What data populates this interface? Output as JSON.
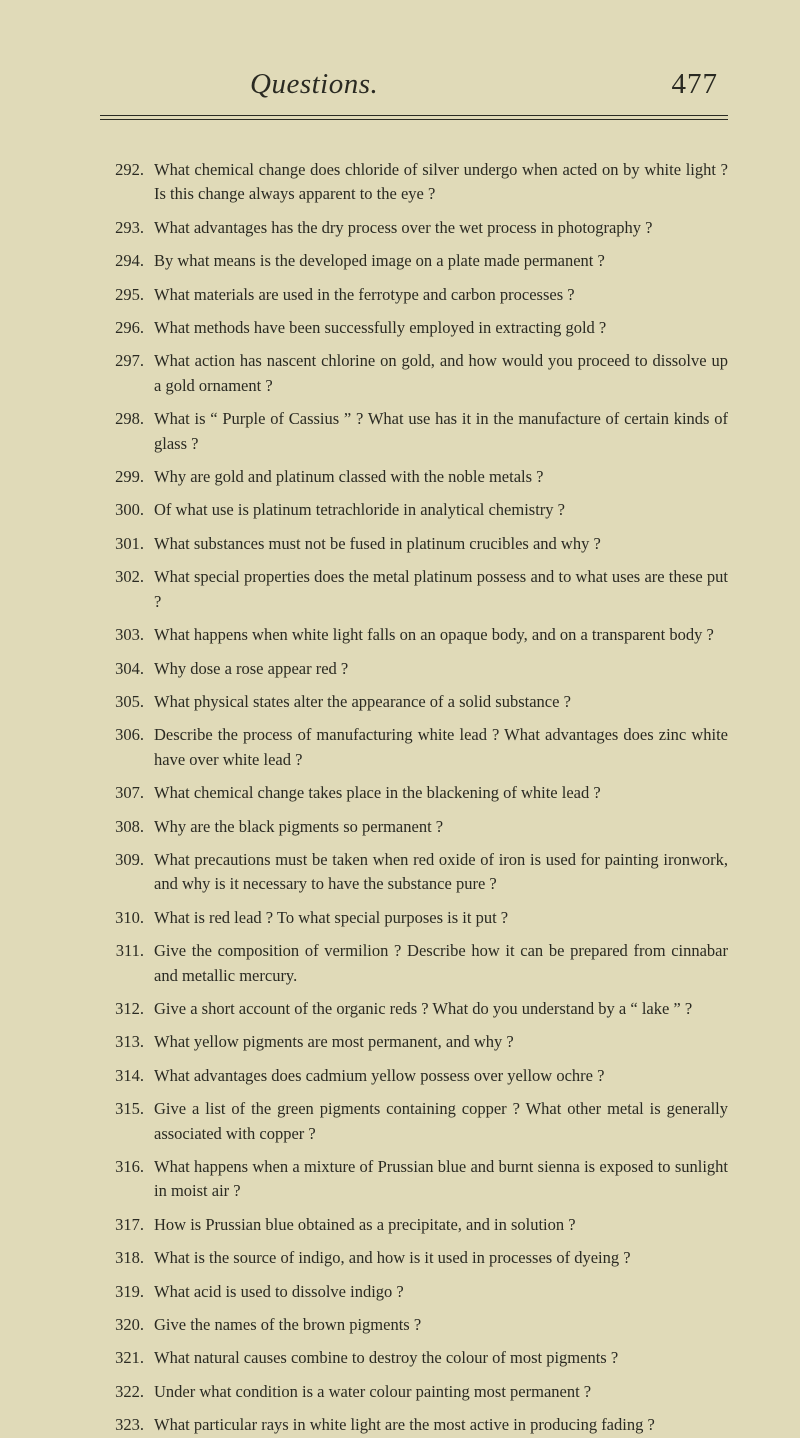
{
  "header": {
    "title": "Questions.",
    "page_number": "477"
  },
  "questions": [
    {
      "num": "292.",
      "text": "What chemical change does chloride of silver undergo when acted on by white light ?   Is this change always apparent to the eye ?",
      "hang": true
    },
    {
      "num": "293.",
      "text": "What advantages has the dry process over the wet process in photography ?"
    },
    {
      "num": "294.",
      "text": "By what means is the developed image on a plate made permanent ?"
    },
    {
      "num": "295.",
      "text": "What materials are used in the ferrotype and carbon processes ?"
    },
    {
      "num": "296.",
      "text": "What methods have been successfully employed in extracting gold ?"
    },
    {
      "num": "297.",
      "text": "What action has nascent chlorine on gold, and how would you proceed to dissolve up a gold ornament ?",
      "hang": true
    },
    {
      "num": "298.",
      "text": "What is “ Purple of Cassius ” ?   What use has it in the manufacture of certain kinds of glass ?",
      "hang": true
    },
    {
      "num": "299.",
      "text": "Why are gold and platinum classed with the noble metals ?"
    },
    {
      "num": "300.",
      "text": "Of what use is platinum tetrachloride in analytical chemistry ?"
    },
    {
      "num": "301.",
      "text": "What substances must not be fused in platinum crucibles and why ?"
    },
    {
      "num": "302.",
      "text": "What special properties does the metal platinum possess and to what uses are these put ?",
      "hang": true
    },
    {
      "num": "303.",
      "text": "What happens when white light falls on an opaque body, and on a transparent body ?",
      "hang": true
    },
    {
      "num": "304.",
      "text": "Why dose a rose appear red ?"
    },
    {
      "num": "305.",
      "text": "What physical states alter the appearance of a solid substance ?"
    },
    {
      "num": "306.",
      "text": "Describe the process of manufacturing white lead ?   What advantages does zinc white have over white lead ?",
      "hang": true
    },
    {
      "num": "307.",
      "text": "What chemical change takes place in the blackening of white lead ?"
    },
    {
      "num": "308.",
      "text": "Why are the black pigments so permanent ?"
    },
    {
      "num": "309.",
      "text": "What precautions must be taken when red oxide of iron is used for painting ironwork, and why is it necessary to have the substance pure ?",
      "hang": true
    },
    {
      "num": "310.",
      "text": "What is red lead ?   To what special purposes is it put ?"
    },
    {
      "num": "311.",
      "text": "Give the composition of vermilion ?   Describe how it can be prepared from cinnabar and metallic mercury.",
      "hang": true
    },
    {
      "num": "312.",
      "text": "Give a short account of the organic reds ?   What do you understand by a “ lake ” ?",
      "hang": true
    },
    {
      "num": "313.",
      "text": "What yellow pigments are most permanent, and why ?"
    },
    {
      "num": "314.",
      "text": "What advantages does cadmium yellow possess over yellow ochre ?"
    },
    {
      "num": "315.",
      "text": "Give a list of the green pigments containing copper ?   What other metal is generally associated with copper ?",
      "hang": true
    },
    {
      "num": "316.",
      "text": "What happens when a mixture of Prussian blue and burnt sienna is exposed to sunlight in moist air ?",
      "hang": true
    },
    {
      "num": "317.",
      "text": "How is Prussian blue obtained as a precipitate, and in solution ?"
    },
    {
      "num": "318.",
      "text": "What is the source of indigo, and how is it used in processes of dyeing ?"
    },
    {
      "num": "319.",
      "text": "What acid is used to dissolve indigo ?"
    },
    {
      "num": "320.",
      "text": "Give the names of the brown pigments ?"
    },
    {
      "num": "321.",
      "text": "What natural causes combine to destroy the colour of most pigments ?"
    },
    {
      "num": "322.",
      "text": "Under what condition is a water colour painting most permanent ?"
    },
    {
      "num": "323.",
      "text": "What particular rays in white light are the most active in producing fading ?",
      "hang": true
    }
  ]
}
